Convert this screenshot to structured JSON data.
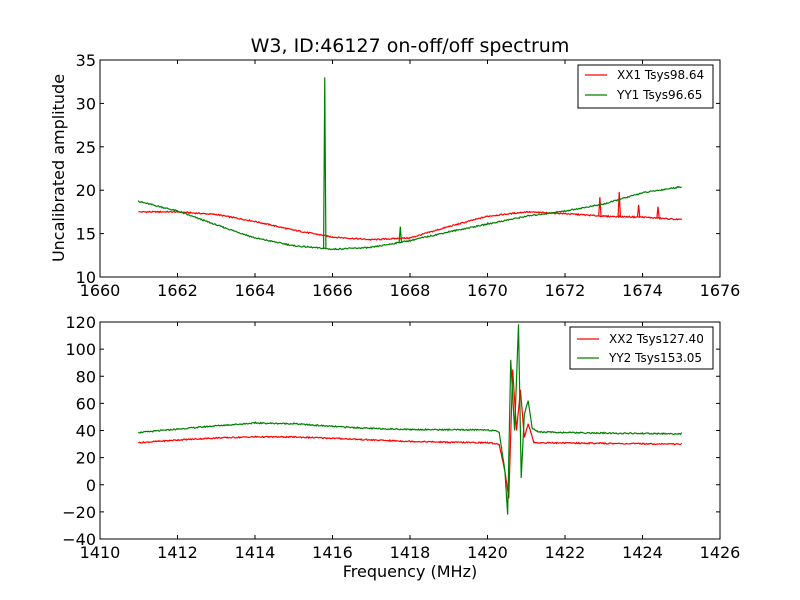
{
  "chart_data": [
    {
      "type": "line",
      "title": "W3, ID:46127 on-off/off spectrum",
      "xlabel": "",
      "ylabel": "Uncalibrated amplitude",
      "xlim": [
        1660,
        1676
      ],
      "ylim": [
        10,
        35
      ],
      "xticks": [
        "1660",
        "1662",
        "1664",
        "1666",
        "1668",
        "1670",
        "1672",
        "1674",
        "1676"
      ],
      "yticks": [
        "10",
        "15",
        "20",
        "25",
        "30",
        "35"
      ],
      "grid": false,
      "legend_position": "upper right",
      "series": [
        {
          "name": "XX1 Tsys98.64",
          "color": "#ff0000",
          "x": [
            1661.0,
            1662.0,
            1663.0,
            1664.0,
            1665.0,
            1666.0,
            1667.0,
            1668.0,
            1669.0,
            1670.0,
            1671.0,
            1672.0,
            1673.0,
            1674.0,
            1675.0
          ],
          "y": [
            17.5,
            17.5,
            17.2,
            16.4,
            15.4,
            14.6,
            14.3,
            14.5,
            15.8,
            17.0,
            17.5,
            17.3,
            17.0,
            16.9,
            16.6
          ],
          "spikes": [
            {
              "x": 1672.9,
              "y": 19.2
            },
            {
              "x": 1673.4,
              "y": 19.8
            },
            {
              "x": 1673.9,
              "y": 18.3
            },
            {
              "x": 1674.4,
              "y": 18.1
            }
          ]
        },
        {
          "name": "YY1 Tsys96.65",
          "color": "#008000",
          "x": [
            1661.0,
            1662.0,
            1663.0,
            1664.0,
            1665.0,
            1666.0,
            1667.0,
            1668.0,
            1669.0,
            1670.0,
            1671.0,
            1672.0,
            1673.0,
            1674.0,
            1675.0
          ],
          "y": [
            18.7,
            17.6,
            16.0,
            14.5,
            13.6,
            13.2,
            13.4,
            14.2,
            15.2,
            16.1,
            17.0,
            17.6,
            18.4,
            19.7,
            20.4
          ],
          "spikes": [
            {
              "x": 1665.8,
              "y": 33.0
            },
            {
              "x": 1667.75,
              "y": 15.8
            }
          ]
        }
      ]
    },
    {
      "type": "line",
      "title": "",
      "xlabel": "Frequency (MHz)",
      "ylabel": "",
      "xlim": [
        1410,
        1426
      ],
      "ylim": [
        -40,
        120
      ],
      "xticks": [
        "1410",
        "1412",
        "1414",
        "1416",
        "1418",
        "1420",
        "1422",
        "1424",
        "1426"
      ],
      "yticks": [
        "−40",
        "−20",
        "0",
        "20",
        "40",
        "60",
        "80",
        "100",
        "120"
      ],
      "grid": false,
      "legend_position": "upper right",
      "series": [
        {
          "name": "XX2 Tsys127.40",
          "color": "#ff0000",
          "x": [
            1411.0,
            1412.0,
            1413.0,
            1414.0,
            1415.0,
            1416.0,
            1417.0,
            1418.0,
            1419.0,
            1420.0,
            1420.3,
            1420.45,
            1420.55,
            1420.65,
            1420.75,
            1420.85,
            1420.95,
            1421.05,
            1421.2,
            1422.0,
            1423.0,
            1424.0,
            1425.0
          ],
          "y": [
            31,
            33,
            34.5,
            35.3,
            35.2,
            34.3,
            33.0,
            32.0,
            31.3,
            31.0,
            30.0,
            10.0,
            -10.0,
            85.0,
            40.0,
            70.0,
            35.0,
            45.0,
            31.0,
            30.8,
            30.5,
            30.2,
            30.0
          ]
        },
        {
          "name": "YY2 Tsys153.05",
          "color": "#008000",
          "x": [
            1411.0,
            1412.0,
            1413.0,
            1414.0,
            1415.0,
            1416.0,
            1417.0,
            1418.0,
            1419.0,
            1420.0,
            1420.3,
            1420.45,
            1420.52,
            1420.6,
            1420.7,
            1420.8,
            1420.87,
            1420.95,
            1421.05,
            1421.15,
            1421.3,
            1422.0,
            1423.0,
            1424.0,
            1425.0
          ],
          "y": [
            38.5,
            41.0,
            43.5,
            45.5,
            45.0,
            43.0,
            41.5,
            40.8,
            40.5,
            40.5,
            39.0,
            10.0,
            -22.0,
            92.0,
            40.0,
            118.0,
            5.0,
            52.0,
            62.0,
            42.0,
            39.0,
            38.5,
            38.0,
            37.8,
            37.5
          ]
        }
      ]
    }
  ]
}
